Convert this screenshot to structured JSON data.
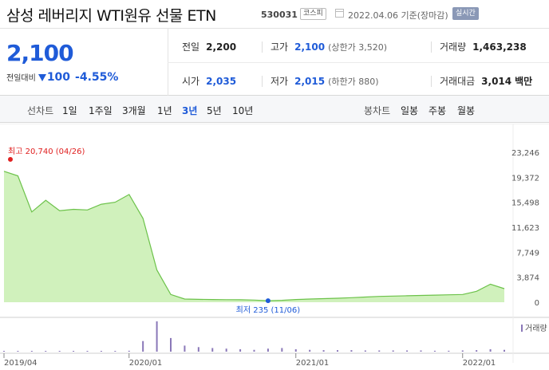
{
  "header": {
    "title": "삼성 레버리지 WTI원유 선물 ETN",
    "code": "530031",
    "market_badge": "코스피",
    "date_text": "2022.04.06  기준(장마감)",
    "realtime_badge": "실시간"
  },
  "summary": {
    "price": "2,100",
    "change_label": "전일대비",
    "change_amount": "100",
    "change_percent": "-4.55%",
    "prev_close": {
      "label": "전일",
      "value": "2,200"
    },
    "open": {
      "label": "시가",
      "value": "2,035"
    },
    "high": {
      "label": "고가",
      "value": "2,100",
      "sub": "(상한가 3,520)"
    },
    "low": {
      "label": "저가",
      "value": "2,015",
      "sub": "(하한가 880)"
    },
    "volume": {
      "label": "거래량",
      "value": "1,463,238"
    },
    "turnover": {
      "label": "거래대금",
      "value": "3,014",
      "unit": "백만"
    }
  },
  "toolbar": {
    "line_label": "선차트",
    "line_periods": [
      "1일",
      "1주일",
      "3개월",
      "1년",
      "3년",
      "5년",
      "10년"
    ],
    "active_period": "3년",
    "candle_label": "봉차트",
    "candle_periods": [
      "일봉",
      "주봉",
      "월봉"
    ]
  },
  "chart_data": {
    "type": "area",
    "y_ticks": [
      "23,246",
      "19,372",
      "15,498",
      "11,623",
      "7,749",
      "3,874",
      "0"
    ],
    "ylim": [
      0,
      23246
    ],
    "x_ticks": [
      "2019/04",
      "2020/01",
      "2021/01",
      "2022/01"
    ],
    "x": [
      "2019/04",
      "2019/05",
      "2019/06",
      "2019/07",
      "2019/08",
      "2019/09",
      "2019/10",
      "2019/11",
      "2019/12",
      "2020/01",
      "2020/02",
      "2020/03",
      "2020/04",
      "2020/05",
      "2020/06",
      "2020/07",
      "2020/08",
      "2020/09",
      "2020/10",
      "2020/11",
      "2020/12",
      "2021/01",
      "2021/02",
      "2021/03",
      "2021/04",
      "2021/05",
      "2021/06",
      "2021/07",
      "2021/08",
      "2021/09",
      "2021/10",
      "2021/11",
      "2021/12",
      "2022/01",
      "2022/02",
      "2022/03",
      "2022/04"
    ],
    "series": [
      {
        "values": [
          20300,
          19600,
          14000,
          15800,
          14200,
          14400,
          14300,
          15200,
          15500,
          16700,
          13000,
          5000,
          1200,
          500,
          450,
          420,
          400,
          380,
          330,
          235,
          300,
          420,
          500,
          560,
          620,
          700,
          800,
          900,
          950,
          1000,
          1050,
          1100,
          1150,
          1200,
          1700,
          2800,
          2100
        ]
      }
    ],
    "volume_label": "거래량",
    "volume_values": [
      0.01,
      0.01,
      0.01,
      0.01,
      0.01,
      0.01,
      0.01,
      0.01,
      0.02,
      0.03,
      0.35,
      1.0,
      0.45,
      0.2,
      0.15,
      0.12,
      0.1,
      0.08,
      0.06,
      0.1,
      0.12,
      0.08,
      0.06,
      0.05,
      0.05,
      0.05,
      0.04,
      0.04,
      0.04,
      0.04,
      0.04,
      0.03,
      0.03,
      0.04,
      0.05,
      0.08,
      0.06
    ],
    "high_annotation": "최고  20,740 (04/26)",
    "low_annotation": "최저  235 (11/06)",
    "colors": {
      "line": "#6cc24a",
      "fill": "#c8eeb0",
      "volume": "#8a78b8",
      "high": "#e02020",
      "low": "#1f5bd8"
    }
  }
}
